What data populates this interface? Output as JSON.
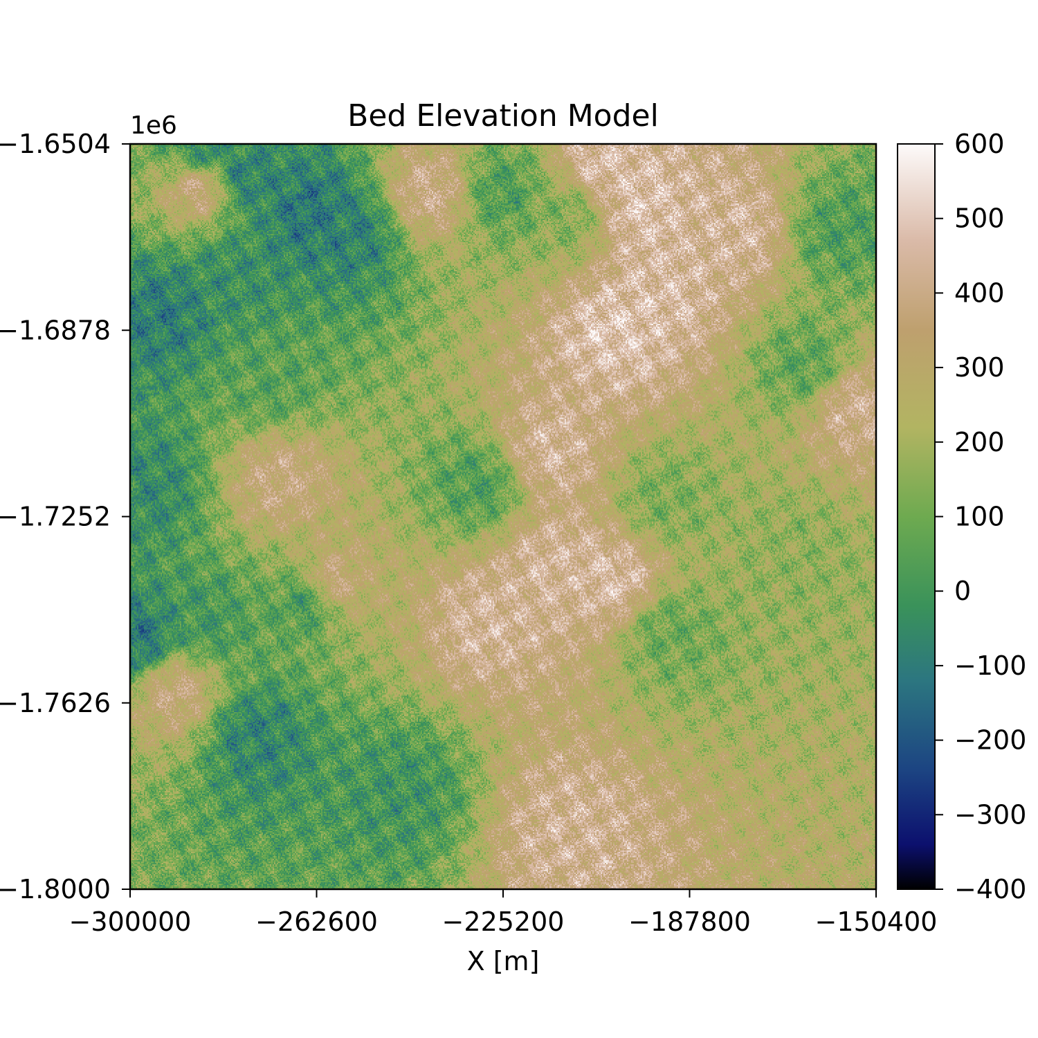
{
  "chart_data": {
    "type": "heatmap",
    "title": "Bed Elevation Model",
    "xlabel": "X [m]",
    "ylabel": "",
    "y_offset_label": "1e6",
    "xlim": [
      -300000,
      -150400
    ],
    "ylim": [
      -1800000,
      -1650400
    ],
    "x_ticks": [
      {
        "value": -300000,
        "label": "−300000"
      },
      {
        "value": -262600,
        "label": "−262600"
      },
      {
        "value": -225200,
        "label": "−225200"
      },
      {
        "value": -187800,
        "label": "−187800"
      },
      {
        "value": -150400,
        "label": "−150400"
      }
    ],
    "y_ticks": [
      {
        "value": -1650400,
        "label": "−1.6504"
      },
      {
        "value": -1687800,
        "label": "−1.6878"
      },
      {
        "value": -1725200,
        "label": "−1.7252"
      },
      {
        "value": -1762600,
        "label": "−1.7626"
      },
      {
        "value": -1800000,
        "label": "−1.8000"
      }
    ],
    "colorbar": {
      "colormap": "gist_earth",
      "range": [
        -400,
        600
      ],
      "ticks": [
        {
          "value": 600,
          "label": "600"
        },
        {
          "value": 500,
          "label": "500"
        },
        {
          "value": 400,
          "label": "400"
        },
        {
          "value": 300,
          "label": "300"
        },
        {
          "value": 200,
          "label": "200"
        },
        {
          "value": 100,
          "label": "100"
        },
        {
          "value": 0,
          "label": "0"
        },
        {
          "value": -100,
          "label": "−100"
        },
        {
          "value": -200,
          "label": "−200"
        },
        {
          "value": -300,
          "label": "−300"
        },
        {
          "value": -400,
          "label": "−400"
        }
      ]
    },
    "grid": false,
    "terrain_features": [
      {
        "x": -294000,
        "y": -1684000,
        "elevation": -360
      },
      {
        "x": -296000,
        "y": -1719000,
        "elevation": -290
      },
      {
        "x": -298000,
        "y": -1750000,
        "elevation": -390
      },
      {
        "x": -279000,
        "y": -1676000,
        "elevation": -260
      },
      {
        "x": -264000,
        "y": -1664000,
        "elevation": -400
      },
      {
        "x": -255000,
        "y": -1668000,
        "elevation": -340
      },
      {
        "x": -285000,
        "y": -1652000,
        "elevation": -300
      },
      {
        "x": -277000,
        "y": -1657000,
        "elevation": -350
      },
      {
        "x": -275000,
        "y": -1769000,
        "elevation": -320
      },
      {
        "x": -264000,
        "y": -1742000,
        "elevation": -230
      },
      {
        "x": -285000,
        "y": -1746000,
        "elevation": -200
      },
      {
        "x": -246000,
        "y": -1780000,
        "elevation": -220
      },
      {
        "x": -230000,
        "y": -1719000,
        "elevation": -150
      },
      {
        "x": -272000,
        "y": -1698000,
        "elevation": -120
      },
      {
        "x": -225000,
        "y": -1660000,
        "elevation": -160
      },
      {
        "x": -158000,
        "y": -1668000,
        "elevation": -150
      },
      {
        "x": -164000,
        "y": -1695000,
        "elevation": -100
      },
      {
        "x": -212000,
        "y": -1665000,
        "elevation": 20
      },
      {
        "x": -193000,
        "y": -1722000,
        "elevation": 0
      },
      {
        "x": -192000,
        "y": -1748000,
        "elevation": -50
      },
      {
        "x": -166000,
        "y": -1732000,
        "elevation": 60
      },
      {
        "x": -205000,
        "y": -1654000,
        "elevation": 570
      },
      {
        "x": -198000,
        "y": -1663000,
        "elevation": 590
      },
      {
        "x": -194000,
        "y": -1680000,
        "elevation": 560
      },
      {
        "x": -203000,
        "y": -1688000,
        "elevation": 600
      },
      {
        "x": -178000,
        "y": -1668000,
        "elevation": 520
      },
      {
        "x": -216000,
        "y": -1712000,
        "elevation": 520
      },
      {
        "x": -203000,
        "y": -1738000,
        "elevation": 560
      },
      {
        "x": -215000,
        "y": -1735000,
        "elevation": 530
      },
      {
        "x": -212000,
        "y": -1788000,
        "elevation": 500
      },
      {
        "x": -228000,
        "y": -1746000,
        "elevation": 520
      },
      {
        "x": -240000,
        "y": -1660000,
        "elevation": 470
      },
      {
        "x": -260000,
        "y": -1739000,
        "elevation": 440
      },
      {
        "x": -286000,
        "y": -1659000,
        "elevation": 450
      },
      {
        "x": -155000,
        "y": -1703000,
        "elevation": 480
      },
      {
        "x": -291000,
        "y": -1760000,
        "elevation": 420
      },
      {
        "x": -270000,
        "y": -1718000,
        "elevation": 420
      }
    ]
  }
}
